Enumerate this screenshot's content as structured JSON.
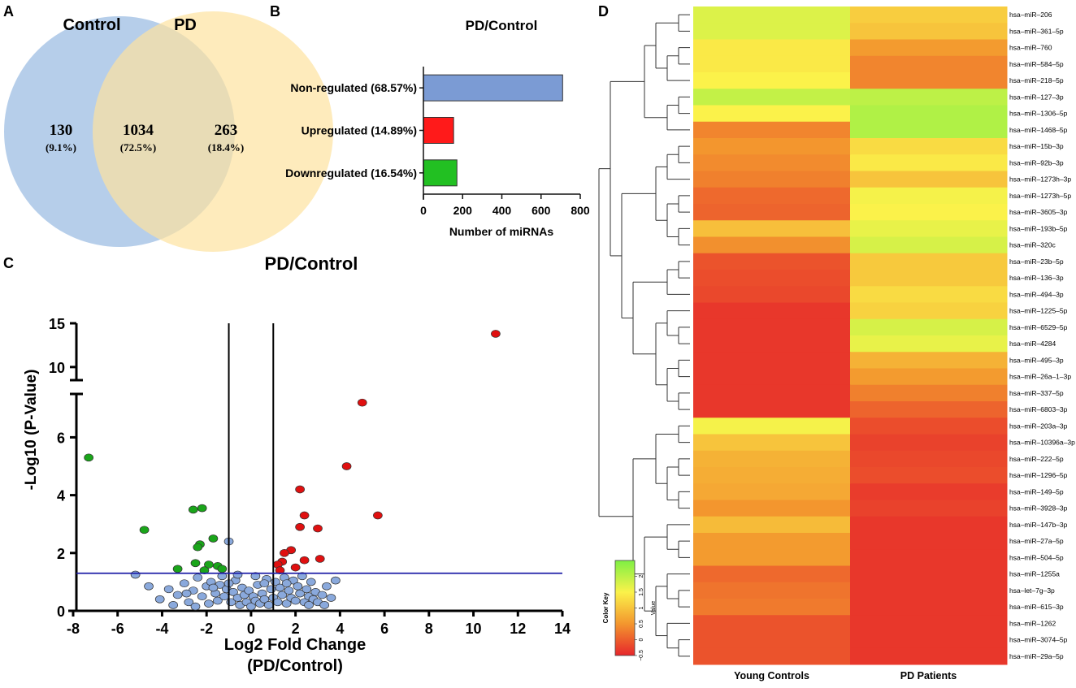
{
  "panels": {
    "a": "A",
    "b": "B",
    "c": "C",
    "d": "D"
  },
  "venn": {
    "left_label": "Control",
    "right_label": "PD",
    "left_only": {
      "count": "130",
      "pct": "(9.1%)"
    },
    "overlap": {
      "count": "1034",
      "pct": "(72.5%)"
    },
    "right_only": {
      "count": "263",
      "pct": "(18.4%)"
    },
    "colors": {
      "left": "#a9c6e6",
      "right": "#fde3a0"
    }
  },
  "chart_data": [
    {
      "id": "bar",
      "type": "bar",
      "orientation": "horizontal",
      "title": "PD/Control",
      "xlabel": "Number of miRNAs",
      "ylabel": "",
      "xlim": [
        0,
        800
      ],
      "xticks": [
        "0",
        "200",
        "400",
        "600",
        "800"
      ],
      "categories": [
        "Non-regulated (68.57%)",
        "Upregulated (14.89%)",
        "Downregulated (16.54%)"
      ],
      "values": [
        710,
        154,
        171
      ],
      "colors": [
        "#7b9bd4",
        "#ff1a1a",
        "#22c022"
      ]
    },
    {
      "id": "volcano",
      "type": "scatter",
      "title": "PD/Control",
      "xlabel": "Log2 Fold Change",
      "xlabel2": "(PD/Control)",
      "ylabel": "-Log10 (P-Value)",
      "xlim": [
        -8,
        14
      ],
      "ylim_lower": [
        0,
        7.5
      ],
      "ylim_upper": [
        8.5,
        15
      ],
      "xticks": [
        "-8",
        "-6",
        "-4",
        "-2",
        "0",
        "2",
        "4",
        "6",
        "8",
        "10",
        "12",
        "14"
      ],
      "yticks_lower": [
        "0",
        "2",
        "4",
        "6"
      ],
      "yticks_upper": [
        "10",
        "15"
      ],
      "thresholds": {
        "fold_change": [
          -1,
          1
        ],
        "p_value_line": 1.3
      },
      "colors": {
        "up": "#e01010",
        "down": "#1aa51a",
        "ns": "#8aa9dc",
        "pline": "#1f1fa8"
      },
      "up": [
        [
          11.0,
          13.8
        ],
        [
          5.0,
          7.2
        ],
        [
          4.3,
          5.0
        ],
        [
          5.7,
          3.3
        ],
        [
          2.2,
          4.2
        ],
        [
          2.4,
          3.3
        ],
        [
          2.2,
          2.9
        ],
        [
          3.0,
          2.85
        ],
        [
          3.1,
          1.8
        ],
        [
          2.4,
          1.75
        ],
        [
          1.8,
          2.1
        ],
        [
          1.5,
          2.0
        ],
        [
          1.4,
          1.7
        ],
        [
          1.2,
          1.6
        ],
        [
          2.0,
          1.5
        ],
        [
          1.3,
          1.4
        ]
      ],
      "down": [
        [
          -7.3,
          5.3
        ],
        [
          -4.8,
          2.8
        ],
        [
          -2.6,
          3.5
        ],
        [
          -2.2,
          3.55
        ],
        [
          -1.7,
          2.5
        ],
        [
          -2.3,
          2.3
        ],
        [
          -2.4,
          2.2
        ],
        [
          -2.5,
          1.65
        ],
        [
          -1.9,
          1.6
        ],
        [
          -1.5,
          1.55
        ],
        [
          -3.3,
          1.45
        ],
        [
          -2.1,
          1.4
        ],
        [
          -1.3,
          1.45
        ]
      ],
      "ns": [
        [
          -1.0,
          2.4
        ],
        [
          -5.2,
          1.25
        ],
        [
          -4.6,
          0.85
        ],
        [
          -4.1,
          0.4
        ],
        [
          -3.7,
          0.75
        ],
        [
          -3.3,
          0.55
        ],
        [
          -3.0,
          0.95
        ],
        [
          -2.8,
          0.3
        ],
        [
          -2.6,
          0.7
        ],
        [
          -2.4,
          1.15
        ],
        [
          -2.2,
          0.5
        ],
        [
          -2.0,
          0.85
        ],
        [
          -1.9,
          0.25
        ],
        [
          -1.8,
          1.0
        ],
        [
          -1.6,
          0.6
        ],
        [
          -1.5,
          0.35
        ],
        [
          -1.4,
          0.9
        ],
        [
          -1.3,
          1.2
        ],
        [
          -1.2,
          0.5
        ],
        [
          -1.1,
          0.75
        ],
        [
          -0.9,
          0.3
        ],
        [
          -0.8,
          0.65
        ],
        [
          -0.7,
          1.05
        ],
        [
          -0.6,
          0.45
        ],
        [
          -0.5,
          0.2
        ],
        [
          -0.4,
          0.8
        ],
        [
          -0.3,
          0.55
        ],
        [
          -0.2,
          0.3
        ],
        [
          -0.1,
          0.7
        ],
        [
          0.0,
          0.15
        ],
        [
          0.1,
          0.5
        ],
        [
          0.2,
          0.35
        ],
        [
          0.3,
          0.9
        ],
        [
          0.4,
          0.25
        ],
        [
          0.5,
          0.6
        ],
        [
          0.6,
          0.4
        ],
        [
          0.7,
          1.1
        ],
        [
          0.8,
          0.2
        ],
        [
          0.9,
          0.75
        ],
        [
          1.0,
          0.45
        ],
        [
          1.1,
          1.0
        ],
        [
          1.2,
          0.3
        ],
        [
          1.3,
          0.8
        ],
        [
          1.4,
          0.55
        ],
        [
          1.5,
          1.15
        ],
        [
          1.6,
          0.25
        ],
        [
          1.7,
          0.7
        ],
        [
          1.8,
          0.45
        ],
        [
          1.9,
          1.05
        ],
        [
          2.0,
          0.35
        ],
        [
          2.1,
          0.85
        ],
        [
          2.2,
          0.6
        ],
        [
          2.3,
          1.2
        ],
        [
          2.4,
          0.3
        ],
        [
          2.5,
          0.75
        ],
        [
          2.6,
          0.5
        ],
        [
          2.7,
          1.0
        ],
        [
          2.8,
          0.4
        ],
        [
          2.9,
          0.65
        ],
        [
          3.0,
          0.3
        ],
        [
          3.2,
          0.55
        ],
        [
          3.4,
          0.85
        ],
        [
          3.6,
          0.45
        ],
        [
          3.8,
          1.05
        ],
        [
          -3.5,
          0.2
        ],
        [
          -2.9,
          0.6
        ],
        [
          -2.5,
          0.15
        ],
        [
          -1.7,
          0.8
        ],
        [
          -1.0,
          0.95
        ],
        [
          -0.6,
          1.25
        ],
        [
          0.2,
          1.2
        ],
        [
          0.6,
          0.95
        ],
        [
          1.6,
          0.95
        ],
        [
          2.6,
          0.2
        ],
        [
          3.3,
          0.2
        ]
      ]
    },
    {
      "id": "heatmap",
      "type": "heatmap",
      "columns": [
        "Young Controls",
        "PD Patients"
      ],
      "rows": [
        "hsa–miR–206",
        "hsa–miR–361–5p",
        "hsa–miR–760",
        "hsa–miR–584–5p",
        "hsa–miR–218–5p",
        "hsa–miR–127–3p",
        "hsa–miR–1306–5p",
        "hsa–miR–1468–5p",
        "hsa–miR–15b–3p",
        "hsa–miR–92b–3p",
        "hsa–miR–1273h–3p",
        "hsa–miR–1273h–5p",
        "hsa–miR–3605–3p",
        "hsa–miR–193b–5p",
        "hsa–miR–320c",
        "hsa–miR–23b–5p",
        "hsa–miR–136–3p",
        "hsa–miR–494–3p",
        "hsa–miR–1225–5p",
        "hsa–miR–6529–5p",
        "hsa–miR–4284",
        "hsa–miR–495–3p",
        "hsa–miR–26a–1–3p",
        "hsa–miR–337–5p",
        "hsa–miR–6803–3p",
        "hsa–miR–203a–3p",
        "hsa–miR–10396a–3p",
        "hsa–miR–222–5p",
        "hsa–miR–1296–5p",
        "hsa–miR–149–5p",
        "hsa–miR–3928–3p",
        "hsa–miR–147b–3p",
        "hsa–miR–27a–5p",
        "hsa–miR–504–5p",
        "hsa–miR–1255a",
        "hsa–let–7g–3p",
        "hsa–miR–615–3p",
        "hsa–miR–1262",
        "hsa–miR–3074–5p",
        "hsa–miR–29a–5p"
      ],
      "values": [
        [
          1.75,
          1.1
        ],
        [
          1.75,
          1.0
        ],
        [
          1.4,
          0.55
        ],
        [
          1.4,
          0.35
        ],
        [
          1.5,
          0.35
        ],
        [
          1.95,
          2.0
        ],
        [
          1.5,
          2.1
        ],
        [
          0.35,
          2.1
        ],
        [
          0.5,
          1.25
        ],
        [
          0.4,
          1.4
        ],
        [
          0.3,
          1.0
        ],
        [
          0.1,
          1.55
        ],
        [
          0.05,
          1.5
        ],
        [
          0.95,
          1.65
        ],
        [
          0.45,
          1.8
        ],
        [
          -0.1,
          1.05
        ],
        [
          -0.15,
          1.05
        ],
        [
          -0.2,
          1.25
        ],
        [
          -0.35,
          1.15
        ],
        [
          -0.35,
          1.8
        ],
        [
          -0.35,
          1.65
        ],
        [
          -0.35,
          0.8
        ],
        [
          -0.35,
          0.55
        ],
        [
          -0.35,
          0.3
        ],
        [
          -0.35,
          0.05
        ],
        [
          1.55,
          -0.15
        ],
        [
          1.0,
          -0.25
        ],
        [
          0.8,
          -0.2
        ],
        [
          0.75,
          -0.15
        ],
        [
          0.7,
          -0.3
        ],
        [
          0.5,
          -0.25
        ],
        [
          0.9,
          -0.35
        ],
        [
          0.55,
          -0.35
        ],
        [
          0.55,
          -0.35
        ],
        [
          0.1,
          -0.35
        ],
        [
          0.2,
          -0.35
        ],
        [
          0.25,
          -0.35
        ],
        [
          -0.1,
          -0.35
        ],
        [
          -0.1,
          -0.35
        ],
        [
          -0.1,
          -0.35
        ]
      ],
      "color_key": {
        "title": "Color Key",
        "axis_label": "Value",
        "range": [
          -0.5,
          2.5
        ],
        "ticks": [
          "−0.5",
          "0",
          "0.5",
          "1",
          "1.5",
          "2"
        ],
        "ramp": [
          "#e6262b",
          "#f3962e",
          "#fbf24a",
          "#7ef044"
        ]
      }
    }
  ]
}
